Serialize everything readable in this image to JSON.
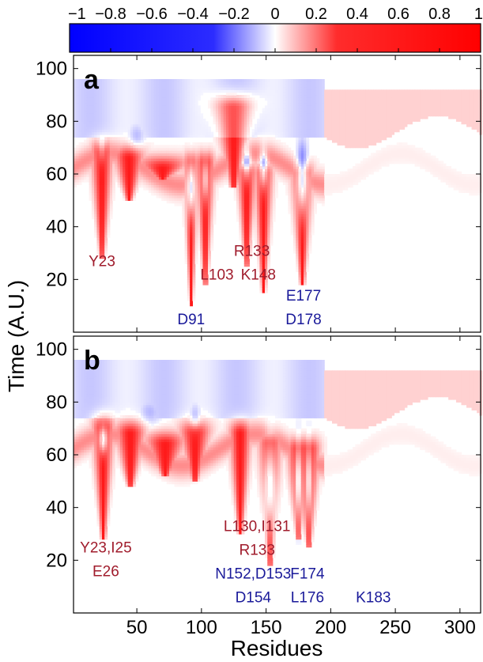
{
  "chart_data": {
    "type": "heatmap",
    "colorbar": {
      "ticks": [
        -1,
        -0.8,
        -0.6,
        -0.4,
        -0.2,
        0,
        0.2,
        0.4,
        0.6,
        0.8,
        1
      ],
      "tick_labels": [
        "−1",
        "−0.8",
        "−0.6",
        "−0.4",
        "−0.2",
        "0",
        "0.2",
        "0.4",
        "0.6",
        "0.8",
        "1"
      ],
      "range": [
        -1,
        1
      ],
      "low_color": "#0000ff",
      "mid_color": "#ffffff",
      "high_color": "#ff0000"
    },
    "xlabel": "Residues",
    "ylabel": "Time (A.U.)",
    "xlim": [
      1,
      316
    ],
    "ylim": [
      0,
      105
    ],
    "xticks": [
      50,
      100,
      150,
      200,
      250,
      300
    ],
    "yticks": [
      20,
      40,
      60,
      80,
      100
    ],
    "panels": [
      {
        "label": "a",
        "annotations": [
          {
            "text": "Y23",
            "x": 23,
            "y": 25,
            "color": "#a01c2c"
          },
          {
            "text": "L103",
            "x": 112,
            "y": 20,
            "color": "#a01c2c"
          },
          {
            "text": "R133",
            "x": 139,
            "y": 29,
            "color": "#a01c2c"
          },
          {
            "text": "K148",
            "x": 144,
            "y": 20,
            "color": "#a01c2c"
          },
          {
            "text": "D91",
            "x": 92,
            "y": 3,
            "color": "#1a1a9a"
          },
          {
            "text": "E177",
            "x": 179,
            "y": 12,
            "color": "#1a1a9a"
          },
          {
            "text": "D178",
            "x": 179,
            "y": 3,
            "color": "#1a1a9a"
          }
        ],
        "red_features": [
          {
            "x": 23,
            "tip": 28,
            "base": 68,
            "w": 3
          },
          {
            "x": 44,
            "tip": 50,
            "base": 66,
            "w": 4
          },
          {
            "x": 70,
            "tip": 58,
            "base": 62,
            "w": 5
          },
          {
            "x": 92,
            "tip": 10,
            "base": 64,
            "w": 2
          },
          {
            "x": 103,
            "tip": 18,
            "base": 64,
            "w": 2.5
          },
          {
            "x": 125,
            "tip": 55,
            "base": 85,
            "w": 5
          },
          {
            "x": 135,
            "tip": 25,
            "base": 60,
            "w": 2.5
          },
          {
            "x": 148,
            "tip": 15,
            "base": 60,
            "w": 2.5
          },
          {
            "x": 178,
            "tip": 18,
            "base": 60,
            "w": 3
          }
        ],
        "blue_features": [
          {
            "x": 92,
            "y": 55,
            "spread": 10,
            "w": 3,
            "amp": 1.0
          },
          {
            "x": 103,
            "y": 58,
            "spread": 8,
            "w": 2.5,
            "amp": 0.7
          },
          {
            "x": 135,
            "y": 64,
            "spread": 6,
            "w": 3,
            "amp": 0.75
          },
          {
            "x": 148,
            "y": 62,
            "spread": 7,
            "w": 3,
            "amp": 0.8
          },
          {
            "x": 178,
            "y": 58,
            "spread": 12,
            "w": 4,
            "amp": 1.0
          },
          {
            "x": 23,
            "y": 70,
            "spread": 5,
            "w": 3,
            "amp": 0.45
          },
          {
            "x": 50,
            "y": 74,
            "spread": 5,
            "w": 6,
            "amp": 0.3
          }
        ]
      },
      {
        "label": "b",
        "annotations": [
          {
            "text": "Y23,I25",
            "x": 26,
            "y": 23,
            "color": "#a01c2c"
          },
          {
            "text": "E26",
            "x": 26,
            "y": 14,
            "color": "#a01c2c"
          },
          {
            "text": "L130,I131",
            "x": 143,
            "y": 31,
            "color": "#a01c2c"
          },
          {
            "text": "R133",
            "x": 143,
            "y": 22,
            "color": "#a01c2c"
          },
          {
            "text": "N152,D153",
            "x": 140,
            "y": 13,
            "color": "#1a1a9a"
          },
          {
            "text": "D154",
            "x": 140,
            "y": 4,
            "color": "#1a1a9a"
          },
          {
            "text": "F174",
            "x": 182,
            "y": 13,
            "color": "#1a1a9a"
          },
          {
            "text": "L176",
            "x": 182,
            "y": 4,
            "color": "#1a1a9a"
          },
          {
            "text": "K183",
            "x": 233,
            "y": 4,
            "color": "#1a1a9a"
          }
        ],
        "red_features": [
          {
            "x": 24,
            "tip": 28,
            "base": 70,
            "w": 3
          },
          {
            "x": 45,
            "tip": 48,
            "base": 68,
            "w": 4
          },
          {
            "x": 72,
            "tip": 52,
            "base": 64,
            "w": 5
          },
          {
            "x": 95,
            "tip": 50,
            "base": 68,
            "w": 4
          },
          {
            "x": 130,
            "tip": 30,
            "base": 68,
            "w": 3
          },
          {
            "x": 153,
            "tip": 18,
            "base": 64,
            "w": 3
          },
          {
            "x": 175,
            "tip": 28,
            "base": 62,
            "w": 3
          },
          {
            "x": 183,
            "tip": 25,
            "base": 62,
            "w": 3
          }
        ],
        "blue_features": [
          {
            "x": 24,
            "y": 66,
            "spread": 5,
            "w": 3,
            "amp": 0.9
          },
          {
            "x": 153,
            "y": 48,
            "spread": 16,
            "w": 4,
            "amp": 0.95
          },
          {
            "x": 175,
            "y": 50,
            "spread": 14,
            "w": 2.5,
            "amp": 0.95
          },
          {
            "x": 183,
            "y": 50,
            "spread": 14,
            "w": 2.5,
            "amp": 0.85
          },
          {
            "x": 60,
            "y": 76,
            "spread": 5,
            "w": 8,
            "amp": 0.3
          },
          {
            "x": 95,
            "y": 74,
            "spread": 5,
            "w": 4,
            "amp": 0.35
          }
        ]
      }
    ]
  }
}
